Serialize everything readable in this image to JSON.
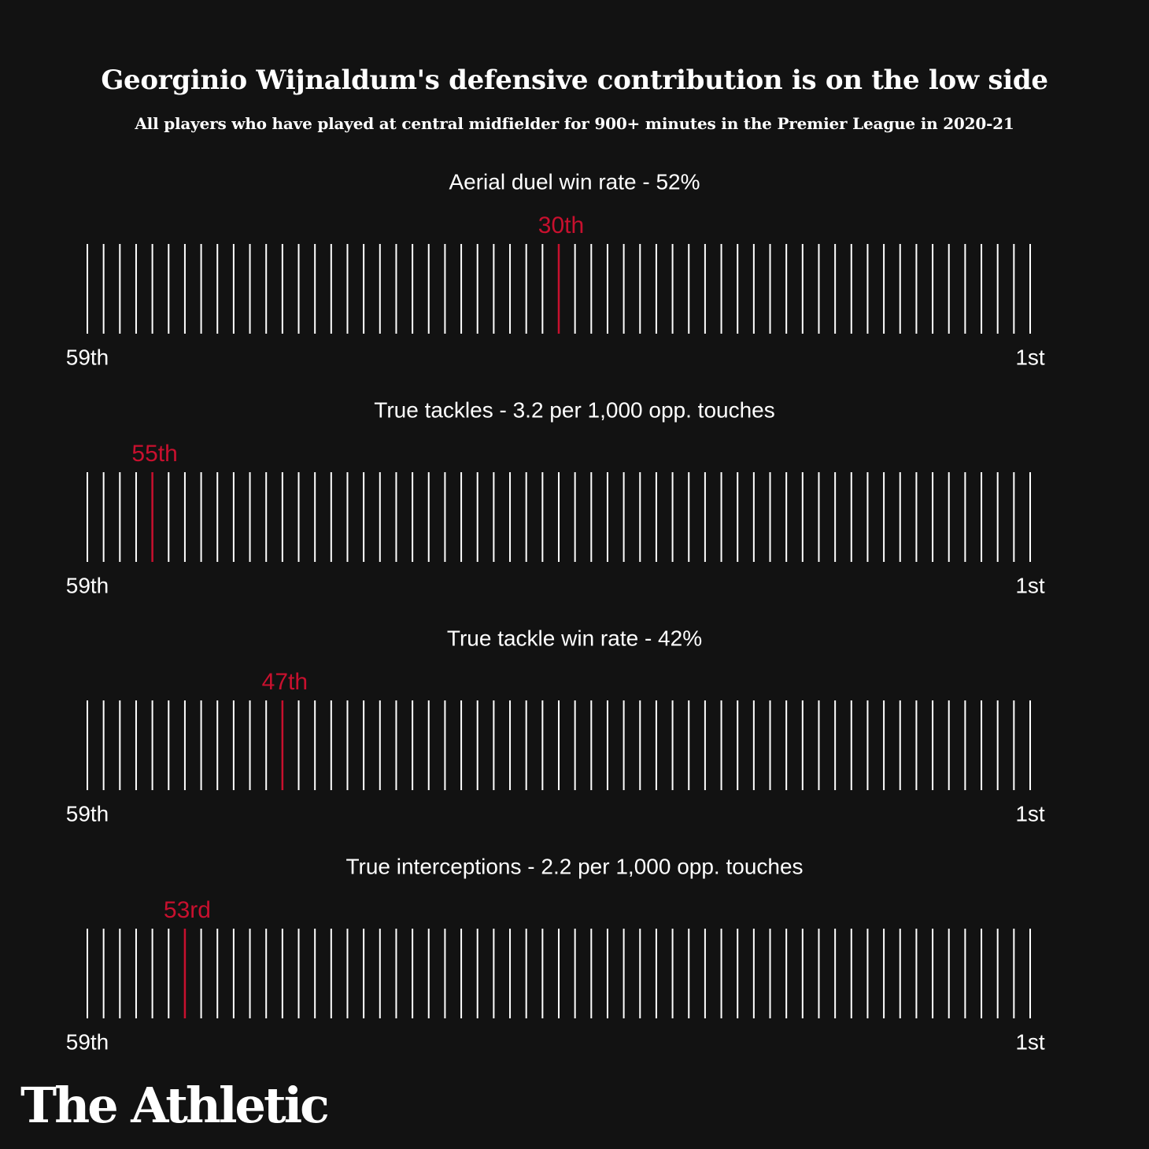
{
  "header": {
    "title": "Georginio Wijnaldum's defensive contribution is on the low side",
    "subtitle": "All players who have played at central midfielder for 900+ minutes in the Premier League in 2020-21"
  },
  "brand": {
    "logo_text": "The Athletic"
  },
  "colors": {
    "background": "#121212",
    "tick": "#ffffff",
    "highlight": "#c8102e",
    "text": "#ffffff"
  },
  "chart_data": [
    {
      "type": "rank-strip",
      "title": "Aerial duel win rate - 52%",
      "rank_min_label": "59th",
      "rank_max_label": "1st",
      "total": 59,
      "highlight_rank": 30,
      "highlight_label": "30th"
    },
    {
      "type": "rank-strip",
      "title": "True tackles - 3.2 per 1,000 opp. touches",
      "rank_min_label": "59th",
      "rank_max_label": "1st",
      "total": 59,
      "highlight_rank": 55,
      "highlight_label": "55th"
    },
    {
      "type": "rank-strip",
      "title": "True tackle win rate - 42%",
      "rank_min_label": "59th",
      "rank_max_label": "1st",
      "total": 59,
      "highlight_rank": 47,
      "highlight_label": "47th"
    },
    {
      "type": "rank-strip",
      "title": "True interceptions - 2.2 per 1,000 opp. touches",
      "rank_min_label": "59th",
      "rank_max_label": "1st",
      "total": 59,
      "highlight_rank": 53,
      "highlight_label": "53rd"
    }
  ]
}
